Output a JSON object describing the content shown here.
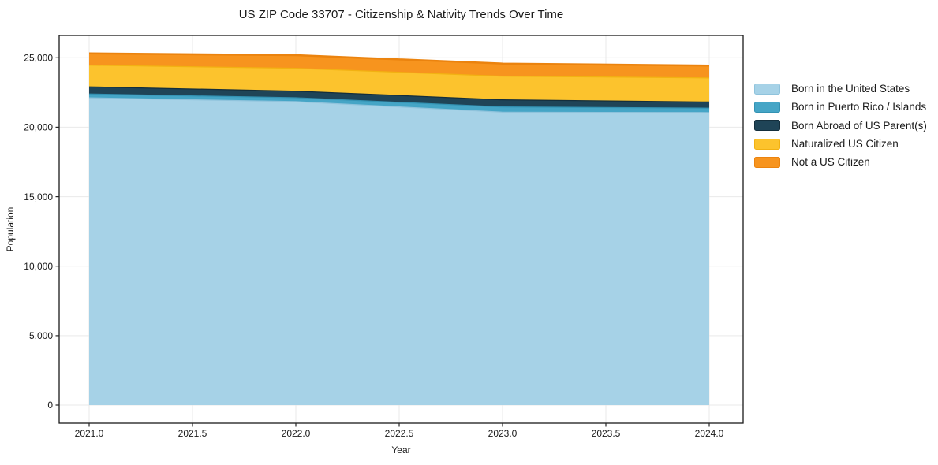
{
  "title": "US ZIP Code 33707 - Citizenship & Nativity Trends Over Time",
  "chart_data": {
    "type": "area",
    "stacked": true,
    "title": "US ZIP Code 33707 - Citizenship & Nativity Trends Over Time",
    "xlabel": "Year",
    "ylabel": "Population",
    "x": [
      2021,
      2022,
      2023,
      2024
    ],
    "series": [
      {
        "name": "Born in the United States",
        "color": "#a6d2e7",
        "edge_color": "#8fc3dc",
        "values": [
          22150,
          21880,
          21120,
          21090
        ]
      },
      {
        "name": "Born in Puerto Rico / Islands",
        "color": "#45a5c6",
        "edge_color": "#3392b3",
        "values": [
          280,
          280,
          380,
          320
        ]
      },
      {
        "name": "Born Abroad of US Parent(s)",
        "color": "#1f4457",
        "edge_color": "#142e3c",
        "values": [
          510,
          470,
          510,
          440
        ]
      },
      {
        "name": "Naturalized US Citizen",
        "color": "#fcc32d",
        "edge_color": "#f2b112",
        "values": [
          1560,
          1650,
          1700,
          1740
        ]
      },
      {
        "name": "Not a US Citizen",
        "color": "#f7941e",
        "edge_color": "#eb830e",
        "values": [
          820,
          910,
          870,
          850
        ]
      }
    ],
    "totals": [
      25320,
      25190,
      24580,
      24440
    ],
    "xticks": {
      "values": [
        2021.0,
        2021.5,
        2022.0,
        2022.5,
        2023.0,
        2023.5,
        2024.0
      ],
      "labels": [
        "2021.0",
        "2021.5",
        "2022.0",
        "2022.5",
        "2023.0",
        "2023.5",
        "2024.0"
      ]
    },
    "yticks": {
      "values": [
        0,
        5000,
        10000,
        15000,
        20000,
        25000
      ],
      "labels": [
        "0",
        "5,000",
        "10,000",
        "15,000",
        "20,000",
        "25,000"
      ]
    },
    "xlim": [
      2020.85,
      2024.16
    ],
    "ylim": [
      -1270,
      26610
    ],
    "grid": true,
    "legend_position": "right-outside"
  },
  "colors": {
    "grid": "#e9e9e9",
    "spine": "#1a1a1a",
    "tick": "#262626",
    "text": "#1a1a1a",
    "background": "#ffffff"
  }
}
